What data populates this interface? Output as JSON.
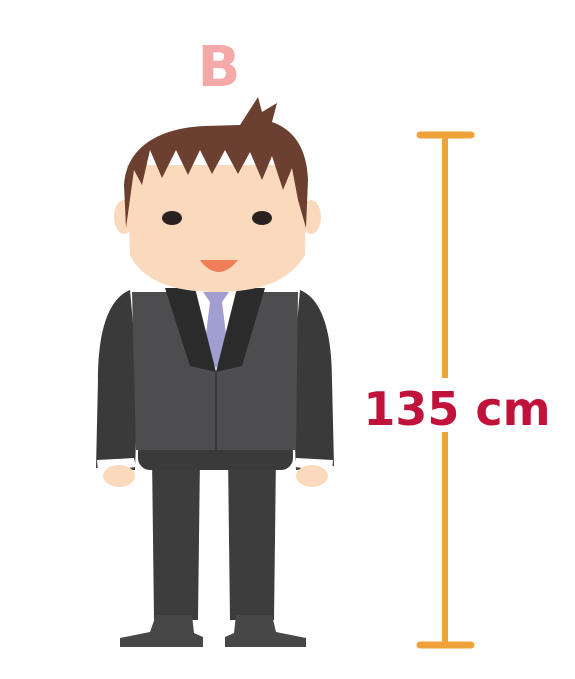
{
  "figure": {
    "label": "B"
  },
  "height_measure": {
    "value_text": "135 cm"
  },
  "colors": {
    "label": "#f4a8a8",
    "measure_text": "#c0123a",
    "measure_bar": "#f0a23a",
    "hair": "#6b4030",
    "skin": "#fbd9bc",
    "jacket": "#3a3a3b",
    "vest": "#4d4d4f",
    "tie": "#a19ed2",
    "mouth": "#ef7f58",
    "pants": "#3d3d3d",
    "shoes": "#474747"
  }
}
